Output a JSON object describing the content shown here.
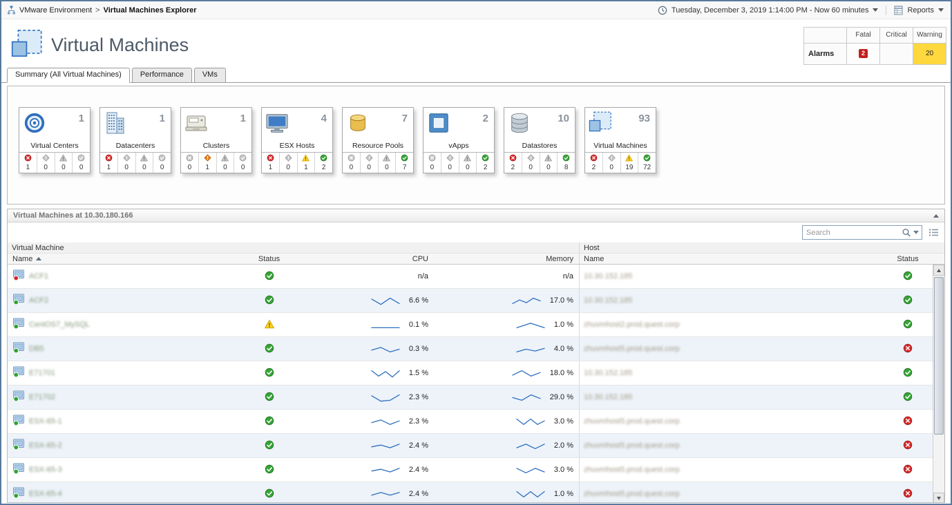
{
  "topbar": {
    "breadcrumb": {
      "root": "VMware Environment",
      "separator": ">",
      "current": "Virtual Machines Explorer"
    },
    "time_range": "Tuesday, December 3, 2019 1:14:00 PM - Now 60 minutes",
    "reports_label": "Reports"
  },
  "header": {
    "title": "Virtual Machines",
    "alarms": {
      "row_label": "Alarms",
      "columns": [
        "Fatal",
        "Critical",
        "Warning"
      ],
      "counts": {
        "fatal": "2",
        "critical": "",
        "warning": "20"
      },
      "colors": {
        "fatal": "#c41e1e",
        "warning": "#ffd83d"
      }
    }
  },
  "tabs": [
    {
      "label": "Summary (All Virtual Machines)",
      "active": true
    },
    {
      "label": "Performance",
      "active": false
    },
    {
      "label": "VMs",
      "active": false
    }
  ],
  "tiles": [
    {
      "label": "Virtual Centers",
      "count": "1",
      "icon": "virtual-centers-icon",
      "alarms": [
        {
          "severity": "fatal",
          "count": "1"
        },
        {
          "severity": "critical",
          "count": "0"
        },
        {
          "severity": "warning",
          "count": "0"
        },
        {
          "severity": "normal",
          "count": "0"
        }
      ]
    },
    {
      "label": "Datacenters",
      "count": "1",
      "icon": "datacenters-icon",
      "alarms": [
        {
          "severity": "fatal",
          "count": "1"
        },
        {
          "severity": "critical",
          "count": "0"
        },
        {
          "severity": "warning",
          "count": "0"
        },
        {
          "severity": "normal",
          "count": "0"
        }
      ]
    },
    {
      "label": "Clusters",
      "count": "1",
      "icon": "clusters-icon",
      "alarms": [
        {
          "severity": "fatal",
          "count": "0"
        },
        {
          "severity": "critical",
          "count": "1"
        },
        {
          "severity": "warning",
          "count": "0"
        },
        {
          "severity": "normal",
          "count": "0"
        }
      ]
    },
    {
      "label": "ESX Hosts",
      "count": "4",
      "icon": "esx-hosts-icon",
      "alarms": [
        {
          "severity": "fatal",
          "count": "1"
        },
        {
          "severity": "critical",
          "count": "0"
        },
        {
          "severity": "warning",
          "count": "1"
        },
        {
          "severity": "normal",
          "count": "2"
        }
      ]
    },
    {
      "label": "Resource Pools",
      "count": "7",
      "icon": "resource-pools-icon",
      "alarms": [
        {
          "severity": "fatal",
          "count": "0"
        },
        {
          "severity": "critical",
          "count": "0"
        },
        {
          "severity": "warning",
          "count": "0"
        },
        {
          "severity": "normal",
          "count": "7"
        }
      ]
    },
    {
      "label": "vApps",
      "count": "2",
      "icon": "vapps-icon",
      "alarms": [
        {
          "severity": "fatal",
          "count": "0"
        },
        {
          "severity": "critical",
          "count": "0"
        },
        {
          "severity": "warning",
          "count": "0"
        },
        {
          "severity": "normal",
          "count": "2"
        }
      ]
    },
    {
      "label": "Datastores",
      "count": "10",
      "icon": "datastores-icon",
      "alarms": [
        {
          "severity": "fatal",
          "count": "2"
        },
        {
          "severity": "critical",
          "count": "0"
        },
        {
          "severity": "warning",
          "count": "0"
        },
        {
          "severity": "normal",
          "count": "8"
        }
      ]
    },
    {
      "label": "Virtual Machines",
      "count": "93",
      "icon": "virtual-machines-icon",
      "alarms": [
        {
          "severity": "fatal",
          "count": "2"
        },
        {
          "severity": "critical",
          "count": "0"
        },
        {
          "severity": "warning",
          "count": "19"
        },
        {
          "severity": "normal",
          "count": "72"
        }
      ]
    }
  ],
  "panel": {
    "title": "Virtual Machines at 10.30.180.166",
    "search": {
      "placeholder": "Search"
    },
    "sort_column": "Name",
    "sort_direction": "ascending",
    "table": {
      "group_headers": [
        "Virtual Machine",
        "Host"
      ],
      "columns": [
        "Name",
        "Status",
        "CPU",
        "Memory",
        "Name",
        "Status"
      ],
      "rows": [
        {
          "name": "ACF1",
          "power": "off",
          "status": "normal",
          "cpu": "n/a",
          "cpu_spark": [],
          "memory": "n/a",
          "memory_spark": [],
          "host": "10.30.152.185",
          "host_status": "normal"
        },
        {
          "name": "ACF2",
          "power": "on",
          "status": "normal",
          "cpu": "6.6 %",
          "cpu_spark": [
            3,
            9,
            2,
            8
          ],
          "memory": "17.0 %",
          "memory_spark": [
            8,
            4,
            7,
            2,
            5
          ],
          "host": "10.30.152.185",
          "host_status": "normal"
        },
        {
          "name": "CentOS7_MySQL",
          "power": "on",
          "status": "warning",
          "cpu": "0.1 %",
          "cpu_spark": [
            8,
            8,
            8,
            8
          ],
          "memory": "1.0 %",
          "memory_spark": [
            8,
            3,
            8
          ],
          "host": "zhuvmhost2.prod.quest.corp",
          "host_status": "normal"
        },
        {
          "name": "DB5",
          "power": "on",
          "status": "normal",
          "cpu": "0.3 %",
          "cpu_spark": [
            6,
            3,
            8,
            5
          ],
          "memory": "4.0 %",
          "memory_spark": [
            8,
            5,
            7,
            4
          ],
          "host": "zhuvmhost5.prod.quest.corp",
          "host_status": "fatal"
        },
        {
          "name": "E71701",
          "power": "on",
          "status": "normal",
          "cpu": "1.5 %",
          "cpu_spark": [
            2,
            8,
            3,
            9,
            2
          ],
          "memory": "18.0 %",
          "memory_spark": [
            7,
            2,
            8,
            4
          ],
          "host": "10.30.152.185",
          "host_status": "normal"
        },
        {
          "name": "E71702",
          "power": "on",
          "status": "normal",
          "cpu": "2.3 %",
          "cpu_spark": [
            3,
            9,
            8,
            2
          ],
          "memory": "29.0 %",
          "memory_spark": [
            5,
            8,
            2,
            6
          ],
          "host": "10.30.152.185",
          "host_status": "normal"
        },
        {
          "name": "ESX-65-1",
          "power": "on",
          "status": "normal",
          "cpu": "2.3 %",
          "cpu_spark": [
            6,
            3,
            8,
            4
          ],
          "memory": "3.0 %",
          "memory_spark": [
            2,
            8,
            2,
            8,
            4
          ],
          "host": "zhuvmhost5.prod.quest.corp",
          "host_status": "fatal"
        },
        {
          "name": "ESX-65-2",
          "power": "on",
          "status": "normal",
          "cpu": "2.4 %",
          "cpu_spark": [
            6,
            4,
            7,
            3
          ],
          "memory": "2.0 %",
          "memory_spark": [
            7,
            3,
            8,
            3
          ],
          "host": "zhuvmhost5.prod.quest.corp",
          "host_status": "fatal"
        },
        {
          "name": "ESX-65-3",
          "power": "on",
          "status": "normal",
          "cpu": "2.4 %",
          "cpu_spark": [
            6,
            4,
            7,
            3
          ],
          "memory": "3.0 %",
          "memory_spark": [
            3,
            8,
            3,
            7
          ],
          "host": "zhuvmhost5.prod.quest.corp",
          "host_status": "fatal"
        },
        {
          "name": "ESX-65-4",
          "power": "on",
          "status": "normal",
          "cpu": "2.4 %",
          "cpu_spark": [
            6,
            3,
            6,
            3
          ],
          "memory": "1.0 %",
          "memory_spark": [
            2,
            8,
            2,
            8,
            2
          ],
          "host": "zhuvmhost5.prod.quest.corp",
          "host_status": "fatal"
        }
      ]
    }
  }
}
